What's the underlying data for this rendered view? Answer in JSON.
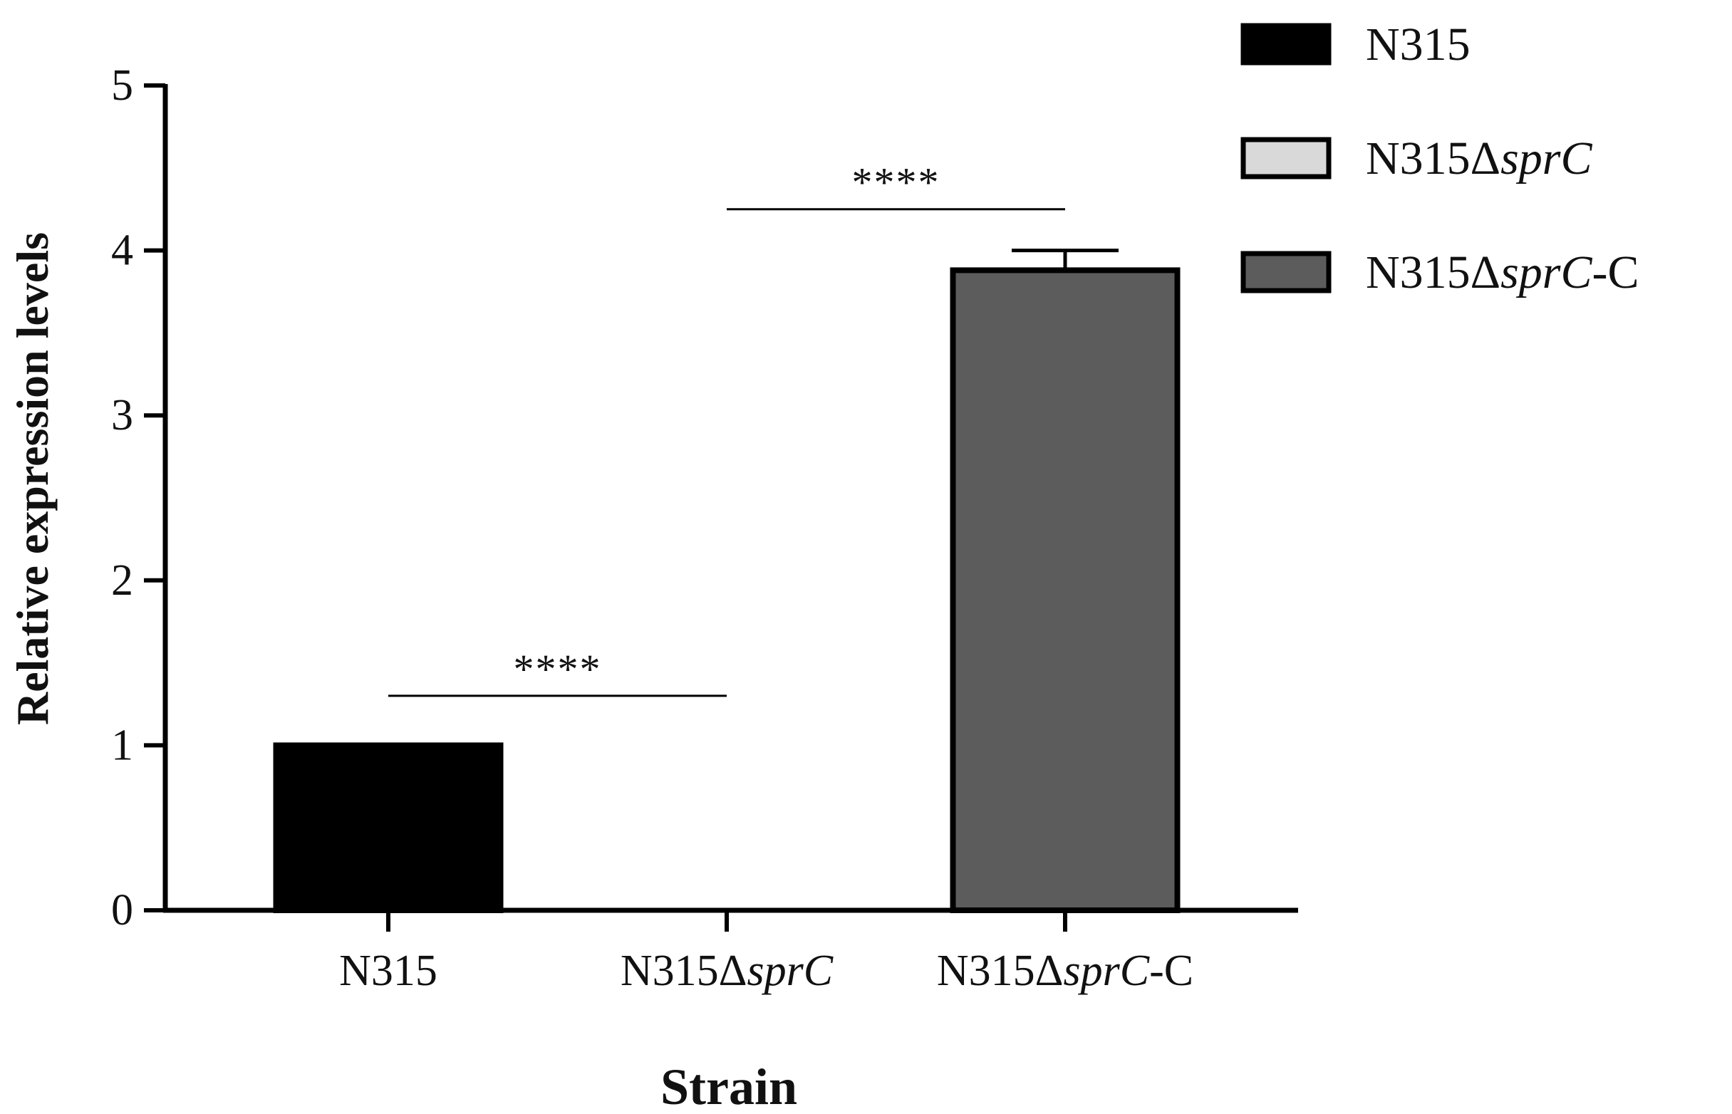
{
  "chart_data": {
    "type": "bar",
    "categories": [
      {
        "prefix": "N315",
        "italic": "",
        "suffix": ""
      },
      {
        "prefix": "N315Δ",
        "italic": "sprC",
        "suffix": ""
      },
      {
        "prefix": "N315Δ",
        "italic": "sprC",
        "suffix": "-C"
      }
    ],
    "values": [
      1.0,
      0.0,
      3.88
    ],
    "errors": [
      0.0,
      0.0,
      0.12
    ],
    "colors": [
      "#000000",
      "#d9d9d9",
      "#5c5c5c"
    ],
    "xlabel": "Strain",
    "ylabel": "Relative expression levels",
    "ylim": [
      0,
      5
    ],
    "yticks": [
      0,
      1,
      2,
      3,
      4,
      5
    ],
    "grid": false,
    "legend_position": "top-right",
    "significance": [
      {
        "from": 0,
        "to": 1,
        "level": 1.3,
        "label": "****"
      },
      {
        "from": 1,
        "to": 2,
        "level": 4.25,
        "label": "****"
      }
    ]
  }
}
